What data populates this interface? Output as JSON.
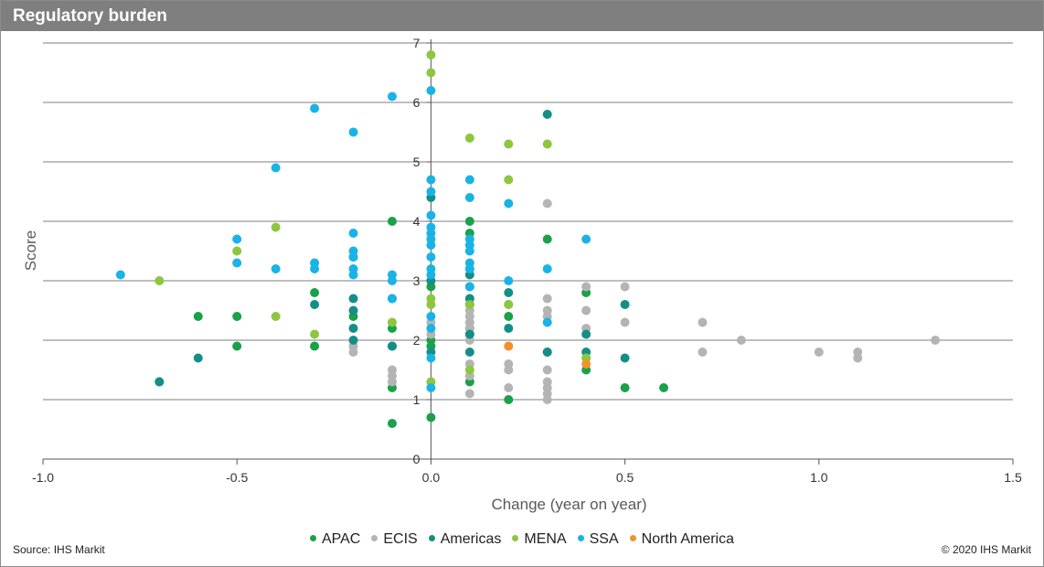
{
  "title": "Regulatory burden",
  "source": "Source: IHS Markit",
  "copyright": "© 2020 IHS Markit",
  "chart_data": {
    "type": "scatter",
    "xlabel": "Change (year on year)",
    "ylabel": "Score",
    "xlim": [
      -1.0,
      1.5
    ],
    "ylim": [
      0,
      7
    ],
    "x_ticks": [
      "-1.0",
      "-0.5",
      "0.0",
      "0.5",
      "1.0",
      "1.5"
    ],
    "y_ticks": [
      "0",
      "1",
      "2",
      "3",
      "4",
      "5",
      "6",
      "7"
    ],
    "grid": "horizontal",
    "legend_position": "bottom",
    "series": [
      {
        "name": "APAC",
        "color": "#1aa14a",
        "points": [
          [
            -0.7,
            1.3
          ],
          [
            -0.6,
            2.4
          ],
          [
            -0.5,
            2.4
          ],
          [
            -0.5,
            1.9
          ],
          [
            -0.3,
            2.8
          ],
          [
            -0.3,
            1.9
          ],
          [
            -0.2,
            3.4
          ],
          [
            -0.2,
            2.4
          ],
          [
            -0.1,
            4.0
          ],
          [
            -0.1,
            2.2
          ],
          [
            -0.1,
            1.9
          ],
          [
            -0.1,
            1.2
          ],
          [
            -0.1,
            0.6
          ],
          [
            0.0,
            2.9
          ],
          [
            0.0,
            2.0
          ],
          [
            0.0,
            1.9
          ],
          [
            0.0,
            0.7
          ],
          [
            0.1,
            4.0
          ],
          [
            0.1,
            3.8
          ],
          [
            0.1,
            3.2
          ],
          [
            0.1,
            2.6
          ],
          [
            0.1,
            2.2
          ],
          [
            0.1,
            2.1
          ],
          [
            0.1,
            1.3
          ],
          [
            0.2,
            2.4
          ],
          [
            0.2,
            1.0
          ],
          [
            0.3,
            3.7
          ],
          [
            0.3,
            1.8
          ],
          [
            0.4,
            2.8
          ],
          [
            0.4,
            1.5
          ],
          [
            0.5,
            1.2
          ],
          [
            0.6,
            1.2
          ]
        ]
      },
      {
        "name": "ECIS",
        "color": "#b4b4b4",
        "points": [
          [
            -0.2,
            1.9
          ],
          [
            -0.2,
            1.8
          ],
          [
            -0.1,
            1.5
          ],
          [
            -0.1,
            1.4
          ],
          [
            -0.1,
            1.3
          ],
          [
            0.0,
            2.3
          ],
          [
            0.0,
            2.1
          ],
          [
            0.1,
            2.7
          ],
          [
            0.1,
            2.5
          ],
          [
            0.1,
            2.4
          ],
          [
            0.1,
            2.3
          ],
          [
            0.1,
            2.2
          ],
          [
            0.1,
            2.0
          ],
          [
            0.1,
            1.6
          ],
          [
            0.1,
            1.4
          ],
          [
            0.1,
            1.1
          ],
          [
            0.2,
            2.6
          ],
          [
            0.2,
            1.6
          ],
          [
            0.2,
            1.5
          ],
          [
            0.2,
            1.2
          ],
          [
            0.3,
            4.3
          ],
          [
            0.3,
            2.7
          ],
          [
            0.3,
            2.5
          ],
          [
            0.3,
            2.4
          ],
          [
            0.3,
            1.8
          ],
          [
            0.3,
            1.5
          ],
          [
            0.3,
            1.3
          ],
          [
            0.3,
            1.2
          ],
          [
            0.3,
            1.1
          ],
          [
            0.3,
            1.0
          ],
          [
            0.4,
            2.9
          ],
          [
            0.4,
            2.5
          ],
          [
            0.4,
            2.2
          ],
          [
            0.4,
            1.7
          ],
          [
            0.5,
            2.9
          ],
          [
            0.5,
            2.3
          ],
          [
            0.7,
            2.3
          ],
          [
            0.7,
            1.8
          ],
          [
            0.8,
            2.0
          ],
          [
            1.0,
            1.8
          ],
          [
            1.1,
            1.8
          ],
          [
            1.1,
            1.7
          ],
          [
            1.3,
            2.0
          ]
        ]
      },
      {
        "name": "Americas",
        "color": "#138f87",
        "points": [
          [
            -0.7,
            1.3
          ],
          [
            -0.6,
            1.7
          ],
          [
            -0.3,
            2.6
          ],
          [
            -0.2,
            2.7
          ],
          [
            -0.2,
            2.5
          ],
          [
            -0.2,
            2.2
          ],
          [
            -0.2,
            2.0
          ],
          [
            -0.1,
            2.7
          ],
          [
            -0.1,
            1.9
          ],
          [
            0.0,
            4.4
          ],
          [
            0.0,
            3.0
          ],
          [
            0.0,
            1.8
          ],
          [
            0.1,
            3.1
          ],
          [
            0.1,
            2.9
          ],
          [
            0.1,
            2.7
          ],
          [
            0.1,
            2.1
          ],
          [
            0.1,
            1.8
          ],
          [
            0.2,
            2.8
          ],
          [
            0.2,
            2.2
          ],
          [
            0.3,
            5.8
          ],
          [
            0.3,
            1.8
          ],
          [
            0.4,
            2.1
          ],
          [
            0.4,
            1.8
          ],
          [
            0.5,
            2.6
          ],
          [
            0.5,
            1.7
          ]
        ]
      },
      {
        "name": "MENA",
        "color": "#8dc63f",
        "points": [
          [
            -0.7,
            3.0
          ],
          [
            -0.5,
            3.5
          ],
          [
            -0.4,
            3.9
          ],
          [
            -0.4,
            2.4
          ],
          [
            -0.3,
            2.1
          ],
          [
            -0.1,
            2.3
          ],
          [
            0.0,
            6.8
          ],
          [
            0.0,
            6.5
          ],
          [
            0.0,
            2.7
          ],
          [
            0.0,
            2.6
          ],
          [
            0.0,
            1.3
          ],
          [
            0.1,
            5.4
          ],
          [
            0.1,
            2.6
          ],
          [
            0.1,
            1.5
          ],
          [
            0.2,
            5.3
          ],
          [
            0.2,
            4.7
          ],
          [
            0.2,
            2.6
          ],
          [
            0.3,
            5.3
          ],
          [
            0.4,
            1.7
          ]
        ]
      },
      {
        "name": "SSA",
        "color": "#1ab3e6",
        "points": [
          [
            -0.8,
            3.1
          ],
          [
            -0.5,
            3.7
          ],
          [
            -0.5,
            3.3
          ],
          [
            -0.4,
            4.9
          ],
          [
            -0.4,
            3.2
          ],
          [
            -0.3,
            5.9
          ],
          [
            -0.3,
            3.3
          ],
          [
            -0.3,
            3.2
          ],
          [
            -0.2,
            5.5
          ],
          [
            -0.2,
            3.8
          ],
          [
            -0.2,
            3.5
          ],
          [
            -0.2,
            3.4
          ],
          [
            -0.2,
            3.2
          ],
          [
            -0.2,
            3.1
          ],
          [
            -0.1,
            6.1
          ],
          [
            -0.1,
            3.1
          ],
          [
            -0.1,
            3.0
          ],
          [
            -0.1,
            2.7
          ],
          [
            0.0,
            6.2
          ],
          [
            0.0,
            4.7
          ],
          [
            0.0,
            4.5
          ],
          [
            0.0,
            4.1
          ],
          [
            0.0,
            3.9
          ],
          [
            0.0,
            3.8
          ],
          [
            0.0,
            3.7
          ],
          [
            0.0,
            3.6
          ],
          [
            0.0,
            3.4
          ],
          [
            0.0,
            3.2
          ],
          [
            0.0,
            3.1
          ],
          [
            0.0,
            2.4
          ],
          [
            0.0,
            2.2
          ],
          [
            0.0,
            1.7
          ],
          [
            0.0,
            1.2
          ],
          [
            0.1,
            4.7
          ],
          [
            0.1,
            4.4
          ],
          [
            0.1,
            3.7
          ],
          [
            0.1,
            3.6
          ],
          [
            0.1,
            3.5
          ],
          [
            0.1,
            3.3
          ],
          [
            0.1,
            3.2
          ],
          [
            0.1,
            2.9
          ],
          [
            0.2,
            4.3
          ],
          [
            0.2,
            3.0
          ],
          [
            0.3,
            3.2
          ],
          [
            0.3,
            2.3
          ],
          [
            0.4,
            3.7
          ]
        ]
      },
      {
        "name": "North America",
        "color": "#f0922b",
        "points": [
          [
            0.2,
            1.9
          ],
          [
            0.4,
            1.6
          ]
        ]
      }
    ]
  }
}
